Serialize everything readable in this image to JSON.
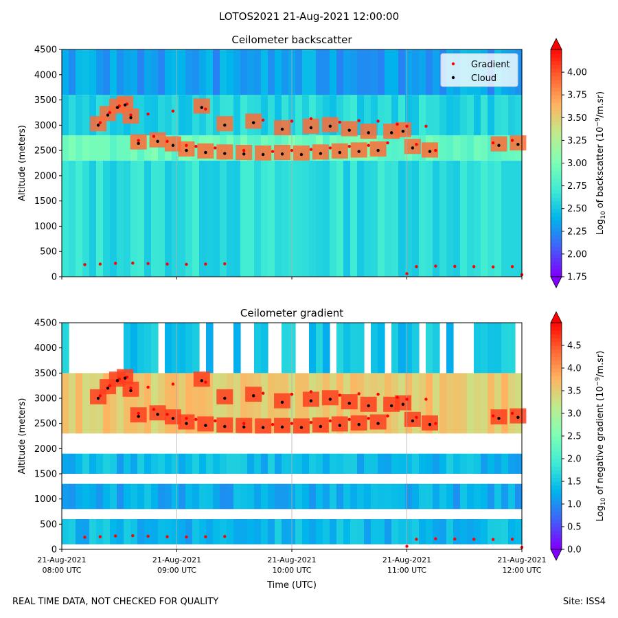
{
  "figure": {
    "title": "LOTOS2021 21-Aug-2021 12:00:00",
    "footer_left": "REAL TIME DATA, NOT CHECKED FOR QUALITY",
    "footer_right": "Site: ISS4"
  },
  "colors": {
    "gradient_marker": "#ff0000",
    "cloud_marker": "#000000",
    "colormap": [
      "#8000ff",
      "#4062fa",
      "#00b5eb",
      "#40ecd4",
      "#80ffb4",
      "#c0eb8d",
      "#ffb360",
      "#ff6130",
      "#ff0000"
    ]
  },
  "chart_data": [
    {
      "type": "heatmap",
      "title": "Ceilometer backscatter",
      "xlabel": "",
      "ylabel": "Altitude (meters)",
      "xlim": [
        "2021-08-21T08:00",
        "2021-08-21T12:00"
      ],
      "ylim": [
        0,
        4500
      ],
      "y_ticks": [
        0,
        500,
        1000,
        1500,
        2000,
        2500,
        3000,
        3500,
        4000,
        4500
      ],
      "x_tick_labels_visible": false,
      "grid": "vertical lines at hourly ticks",
      "colorbar": {
        "label": "Log10 of backscatter (10^-9/m.sr)",
        "label_main": "Log",
        "label_sub": "10",
        "label_rest": " of backscatter (10",
        "label_sup": "−9",
        "label_end": "/m.sr)",
        "range": [
          1.75,
          4.25
        ],
        "ticks": [
          "1.75",
          "2.00",
          "2.25",
          "2.50",
          "2.75",
          "3.00",
          "3.25",
          "3.50",
          "3.75",
          "4.00"
        ]
      },
      "legend": {
        "placement": "top-right",
        "entries": [
          {
            "name": "Gradient",
            "color": "#ff0000"
          },
          {
            "name": "Cloud",
            "color": "#000000"
          }
        ]
      },
      "field_summary": [
        {
          "alt_from": 0,
          "alt_to": 2300,
          "level": 2.6
        },
        {
          "alt_from": 2300,
          "alt_to": 2800,
          "level": 2.9
        },
        {
          "alt_from": 2800,
          "alt_to": 3600,
          "level": 2.55
        },
        {
          "alt_from": 3600,
          "alt_to": 4500,
          "level": 2.3
        }
      ],
      "series": [
        {
          "name": "Gradient",
          "points": [
            [
              "08:12",
              240
            ],
            [
              "08:20",
              250
            ],
            [
              "08:28",
              265
            ],
            [
              "08:37",
              270
            ],
            [
              "08:45",
              260
            ],
            [
              "08:55",
              250
            ],
            [
              "09:05",
              245
            ],
            [
              "09:15",
              250
            ],
            [
              "09:25",
              255
            ],
            [
              "11:00",
              60
            ],
            [
              "11:05",
              200
            ],
            [
              "11:15",
              210
            ],
            [
              "11:25",
              205
            ],
            [
              "11:35",
              200
            ],
            [
              "11:45",
              195
            ],
            [
              "11:55",
              200
            ],
            [
              "12:00",
              40
            ],
            [
              "08:20",
              3050
            ],
            [
              "08:25",
              3250
            ],
            [
              "08:30",
              3380
            ],
            [
              "08:34",
              3420
            ],
            [
              "08:36",
              3200
            ],
            [
              "08:40",
              2700
            ],
            [
              "08:48",
              2780
            ],
            [
              "08:55",
              2680
            ],
            [
              "09:05",
              2600
            ],
            [
              "09:10",
              2580
            ],
            [
              "09:15",
              3320
            ],
            [
              "09:20",
              2550
            ],
            [
              "09:35",
              2500
            ],
            [
              "09:50",
              2480
            ],
            [
              "10:00",
              2500
            ],
            [
              "10:10",
              2520
            ],
            [
              "10:20",
              2550
            ],
            [
              "10:30",
              2580
            ],
            [
              "10:40",
              2600
            ],
            [
              "10:50",
              2650
            ],
            [
              "11:00",
              2980
            ],
            [
              "11:05",
              2620
            ],
            [
              "11:15",
              2500
            ],
            [
              "11:45",
              2650
            ],
            [
              "11:55",
              2700
            ],
            [
              "08:45",
              3220
            ],
            [
              "08:58",
              3280
            ],
            [
              "09:45",
              3100
            ],
            [
              "10:00",
              3080
            ],
            [
              "10:10",
              3130
            ],
            [
              "10:25",
              3060
            ],
            [
              "10:35",
              3090
            ],
            [
              "10:45",
              3080
            ],
            [
              "10:55",
              3020
            ],
            [
              "11:10",
              2980
            ]
          ]
        },
        {
          "name": "Cloud",
          "points": [
            [
              "08:19",
              3000
            ],
            [
              "08:24",
              3200
            ],
            [
              "08:29",
              3350
            ],
            [
              "08:33",
              3400
            ],
            [
              "08:36",
              3150
            ],
            [
              "08:40",
              2640
            ],
            [
              "08:50",
              2680
            ],
            [
              "08:58",
              2600
            ],
            [
              "09:05",
              2500
            ],
            [
              "09:15",
              2460
            ],
            [
              "09:25",
              2440
            ],
            [
              "09:35",
              2430
            ],
            [
              "09:45",
              2420
            ],
            [
              "09:55",
              2430
            ],
            [
              "10:05",
              2420
            ],
            [
              "10:15",
              2440
            ],
            [
              "10:25",
              2460
            ],
            [
              "10:35",
              2480
            ],
            [
              "10:45",
              2500
            ],
            [
              "10:52",
              2850
            ],
            [
              "10:58",
              2880
            ],
            [
              "11:03",
              2550
            ],
            [
              "11:12",
              2480
            ],
            [
              "11:48",
              2600
            ],
            [
              "11:58",
              2620
            ],
            [
              "09:13",
              3350
            ],
            [
              "09:25",
              3000
            ],
            [
              "09:40",
              3050
            ],
            [
              "09:55",
              2920
            ],
            [
              "10:10",
              2950
            ],
            [
              "10:20",
              2980
            ],
            [
              "10:30",
              2900
            ],
            [
              "10:40",
              2850
            ]
          ]
        }
      ]
    },
    {
      "type": "heatmap",
      "title": "Ceilometer gradient",
      "xlabel": "Time (UTC)",
      "ylabel": "Altitude (meters)",
      "xlim": [
        "2021-08-21T08:00",
        "2021-08-21T12:00"
      ],
      "ylim": [
        0,
        4500
      ],
      "y_ticks": [
        0,
        500,
        1000,
        1500,
        2000,
        2500,
        3000,
        3500,
        4000,
        4500
      ],
      "x_ticks": [
        {
          "date": "21-Aug-2021",
          "time": "08:00 UTC"
        },
        {
          "date": "21-Aug-2021",
          "time": "09:00 UTC"
        },
        {
          "date": "21-Aug-2021",
          "time": "10:00 UTC"
        },
        {
          "date": "21-Aug-2021",
          "time": "11:00 UTC"
        },
        {
          "date": "21-Aug-2021",
          "time": "12:00 UTC"
        }
      ],
      "grid": "vertical lines at hourly ticks",
      "colorbar": {
        "label": "Log10 of negative gradient (10^-9/m.sr)",
        "label_main": "Log",
        "label_sub": "10",
        "label_rest": " of negative gradient (10",
        "label_sup": "−9",
        "label_end": "/m.sr)",
        "range": [
          0,
          5
        ],
        "ticks": [
          "0.0",
          "0.5",
          "1.0",
          "1.5",
          "2.0",
          "2.5",
          "3.0",
          "3.5",
          "4.0",
          "4.5"
        ]
      },
      "field_summary": [
        {
          "alt_from": 0,
          "alt_to": 100,
          "level": "masked"
        },
        {
          "alt_from": 100,
          "alt_to": 600,
          "level": 1.3
        },
        {
          "alt_from": 600,
          "alt_to": 800,
          "level": "masked"
        },
        {
          "alt_from": 800,
          "alt_to": 1300,
          "level": 1.2
        },
        {
          "alt_from": 1300,
          "alt_to": 1500,
          "level": "masked"
        },
        {
          "alt_from": 1500,
          "alt_to": 1900,
          "level": 1.3
        },
        {
          "alt_from": 1900,
          "alt_to": 2300,
          "level": "masked"
        },
        {
          "alt_from": 2300,
          "alt_to": 3500,
          "level": 3.5
        },
        {
          "alt_from": 3500,
          "alt_to": 4500,
          "level": "patchy 1.4"
        }
      ],
      "series_ref": [
        "Gradient",
        "Cloud"
      ]
    }
  ]
}
